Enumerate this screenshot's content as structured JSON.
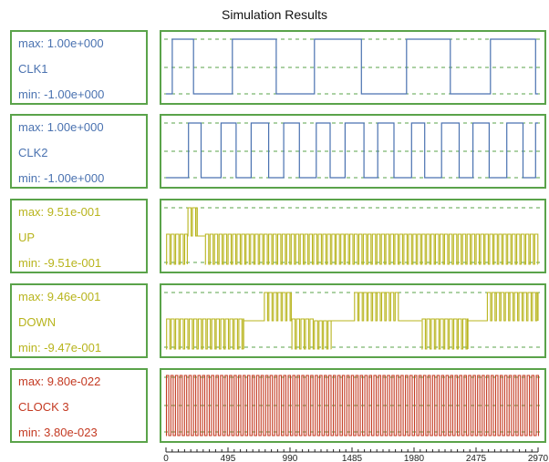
{
  "title": "Simulation Results",
  "colors": {
    "border": "#5aa34a",
    "blue": "#4a72b0",
    "yellow": "#b8b41c",
    "red": "#c43a22"
  },
  "chart_data": {
    "type": "line",
    "title": "Simulation Results",
    "x_ticks": [
      "0",
      "495",
      "990",
      "1485",
      "1980",
      "2475",
      "2970"
    ],
    "xlim": [
      0,
      2970
    ],
    "series": [
      {
        "name": "CLK1",
        "max_label": "max: 1.00e+000",
        "min_label": "min: -1.00e+000",
        "color": "#4a72b0",
        "levels": [
          -1,
          1
        ],
        "x": [
          0,
          50,
          50,
          220,
          220,
          530,
          530,
          880,
          880,
          1185,
          1185,
          1560,
          1560,
          1920,
          1920,
          2270,
          2270,
          2590,
          2590,
          2950,
          2950,
          2970
        ],
        "y": [
          -1,
          -1,
          1,
          1,
          -1,
          -1,
          1,
          1,
          -1,
          -1,
          1,
          1,
          -1,
          -1,
          1,
          1,
          -1,
          -1,
          1,
          1,
          -1,
          -1
        ]
      },
      {
        "name": "CLK2",
        "max_label": "max: 1.00e+000",
        "min_label": "min: -1.00e+000",
        "color": "#4a72b0",
        "levels": [
          -1,
          1
        ],
        "x": [
          0,
          100,
          100,
          180,
          180,
          280,
          280,
          440,
          440,
          560,
          560,
          680,
          680,
          820,
          820,
          940,
          940,
          1065,
          1065,
          1200,
          1200,
          1310,
          1310,
          1430,
          1430,
          1580,
          1580,
          1690,
          1690,
          1820,
          1820,
          1960,
          1960,
          2065,
          2065,
          2200,
          2200,
          2340,
          2340,
          2450,
          2450,
          2580,
          2580,
          2720,
          2720,
          2850,
          2850,
          2950,
          2950,
          2970
        ],
        "y": [
          -1,
          -1,
          -1,
          -1,
          1,
          1,
          -1,
          -1,
          1,
          1,
          -1,
          -1,
          1,
          1,
          -1,
          -1,
          1,
          1,
          -1,
          -1,
          1,
          1,
          -1,
          -1,
          1,
          1,
          -1,
          -1,
          1,
          1,
          -1,
          -1,
          1,
          1,
          -1,
          -1,
          1,
          1,
          -1,
          -1,
          1,
          1,
          -1,
          -1,
          1,
          1,
          -1,
          -1,
          1,
          1
        ]
      },
      {
        "name": "UP",
        "max_label": "max: 9.51e-001",
        "min_label": "min: -9.51e-001",
        "color": "#b8b41c",
        "levels": [
          -0.951,
          0.951
        ],
        "segments": [
          {
            "x0": 0,
            "x1": 170,
            "period": 36,
            "state": "mid"
          },
          {
            "x0": 170,
            "x1": 250,
            "period": 36,
            "state": "high"
          },
          {
            "x0": 250,
            "x1": 310,
            "period": 36,
            "state": "off"
          },
          {
            "x0": 310,
            "x1": 2970,
            "period": 36,
            "state": "mid"
          }
        ]
      },
      {
        "name": "DOWN",
        "max_label": "max: 9.46e-001",
        "min_label": "min: -9.47e-001",
        "color": "#b8b41c",
        "levels": [
          -0.947,
          0.946
        ],
        "segments": [
          {
            "x0": 0,
            "x1": 620,
            "period": 36,
            "state": "mid"
          },
          {
            "x0": 620,
            "x1": 780,
            "period": 36,
            "state": "off"
          },
          {
            "x0": 780,
            "x1": 1000,
            "period": 36,
            "state": "high"
          },
          {
            "x0": 1000,
            "x1": 1180,
            "period": 36,
            "state": "mid"
          },
          {
            "x0": 1180,
            "x1": 1320,
            "period": 36,
            "state": "low"
          },
          {
            "x0": 1320,
            "x1": 1500,
            "period": 36,
            "state": "off"
          },
          {
            "x0": 1500,
            "x1": 1860,
            "period": 36,
            "state": "high"
          },
          {
            "x0": 1860,
            "x1": 2040,
            "period": 36,
            "state": "off"
          },
          {
            "x0": 2040,
            "x1": 2410,
            "period": 36,
            "state": "mid"
          },
          {
            "x0": 2410,
            "x1": 2560,
            "period": 36,
            "state": "off"
          },
          {
            "x0": 2560,
            "x1": 2970,
            "period": 36,
            "state": "high"
          }
        ]
      },
      {
        "name": "CLOCK 3",
        "max_label": "max: 9.80e-022",
        "min_label": "min: 3.80e-023",
        "color": "#c43a22",
        "levels": [
          0,
          1
        ],
        "period": 36
      }
    ]
  }
}
